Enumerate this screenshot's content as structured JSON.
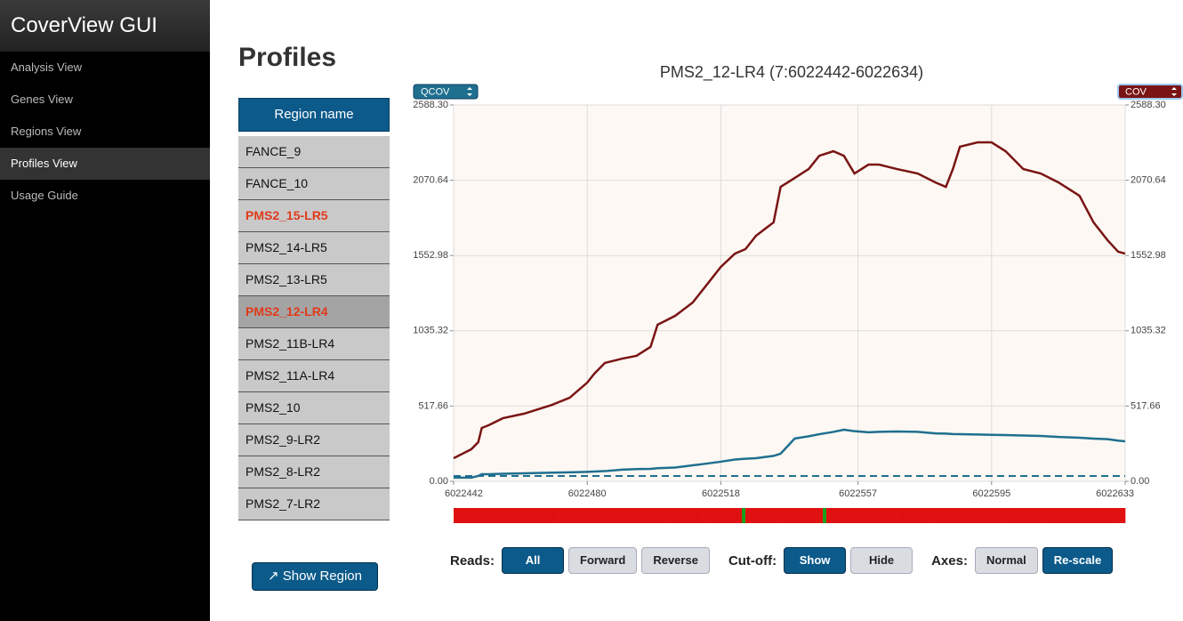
{
  "sidebar": {
    "title": "CoverView GUI",
    "menu": [
      "Analysis View",
      "Genes View",
      "Regions View",
      "Profiles View",
      "Usage Guide"
    ],
    "active": 3
  },
  "heading": "Profiles",
  "table": {
    "header": "Region name",
    "rows": [
      "FANCE_9",
      "FANCE_10",
      "PMS2_15-LR5",
      "PMS2_14-LR5",
      "PMS2_13-LR5",
      "PMS2_12-LR4",
      "PMS2_11B-LR4",
      "PMS2_11A-LR4",
      "PMS2_10",
      "PMS2_9-LR2",
      "PMS2_8-LR2",
      "PMS2_7-LR2"
    ],
    "highlighted": [
      2,
      5
    ],
    "selected": 5
  },
  "show_region_button": "↗ Show Region",
  "chart_data": {
    "type": "line",
    "title": "PMS2_12-LR4 (7:6022442-6022634)",
    "x": [
      6022442,
      6022447,
      6022449,
      6022450,
      6022452,
      6022456,
      6022462,
      6022470,
      6022475,
      6022480,
      6022482,
      6022485,
      6022490,
      6022494,
      6022498,
      6022500,
      6022505,
      6022510,
      6022514,
      6022518,
      6022522,
      6022525,
      6022528,
      6022533,
      6022535,
      6022539,
      6022543,
      6022546,
      6022550,
      6022553,
      6022556,
      6022560,
      6022563,
      6022568,
      6022574,
      6022579,
      6022582,
      6022584,
      6022586,
      6022591,
      6022595,
      6022599,
      6022604,
      6022609,
      6022614,
      6022620,
      6022624,
      6022628,
      6022631,
      6022633
    ],
    "series": [
      {
        "name": "COV",
        "color": "#7a1414",
        "axis": "y2",
        "values": [
          159,
          220,
          269,
          367,
          386,
          434,
          465,
          526,
          575,
          679,
          740,
          814,
          844,
          863,
          924,
          1077,
          1138,
          1230,
          1352,
          1475,
          1566,
          1597,
          1689,
          1781,
          2025,
          2086,
          2148,
          2239,
          2270,
          2239,
          2117,
          2178,
          2178,
          2148,
          2117,
          2056,
          2025,
          2148,
          2301,
          2331,
          2331,
          2270,
          2148,
          2117,
          2056,
          1964,
          1781,
          1658,
          1579,
          1566
        ]
      },
      {
        "name": "QCOV",
        "color": "#1f6f8f",
        "values": [
          25,
          25,
          37,
          49,
          49,
          52,
          55,
          60,
          62,
          65,
          67,
          70,
          80,
          84,
          86,
          90,
          95,
          110,
          122,
          135,
          150,
          155,
          159,
          175,
          190,
          294,
          310,
          324,
          340,
          355,
          345,
          337,
          340,
          343,
          340,
          330,
          328,
          325,
          324,
          322,
          320,
          318,
          315,
          312,
          305,
          300,
          294,
          290,
          280,
          275
        ]
      }
    ],
    "cutoff": 37,
    "cutoff_color": "#1f6f8f",
    "xlim": [
      6022442,
      6022633
    ],
    "xticks": [
      6022442,
      6022480,
      6022518,
      6022557,
      6022595,
      6022633
    ],
    "ylim": [
      0,
      2588.3
    ],
    "yticks": [
      {
        "value": 0,
        "label": "0.00"
      },
      {
        "value": 517.66,
        "label": "517.66"
      },
      {
        "value": 1035.32,
        "label": "1035.32"
      },
      {
        "value": 1552.98,
        "label": "1552.98"
      },
      {
        "value": 2070.64,
        "label": "2070.64"
      },
      {
        "value": 2588.3,
        "label": "2588.30"
      }
    ],
    "y2lim": [
      0,
      2588.3
    ],
    "y2ticks": [
      {
        "value": 0,
        "label": "0.00"
      },
      {
        "value": 517.66,
        "label": "517.66"
      },
      {
        "value": 1035.32,
        "label": "1035.32"
      },
      {
        "value": 1552.98,
        "label": "1552.98"
      },
      {
        "value": 2070.64,
        "label": "2070.64"
      },
      {
        "value": 2588.3,
        "label": "2588.30"
      }
    ],
    "grid": true
  },
  "controls": [
    {
      "label": "Reads:",
      "options": [
        "All",
        "Forward",
        "Reverse"
      ],
      "selected": 0
    },
    {
      "label": "Cut-off:",
      "options": [
        "Show",
        "Hide"
      ],
      "selected": 0
    },
    {
      "label": "Axes:",
      "options": [
        "Normal",
        "Re-scale"
      ],
      "selected": 1
    }
  ]
}
